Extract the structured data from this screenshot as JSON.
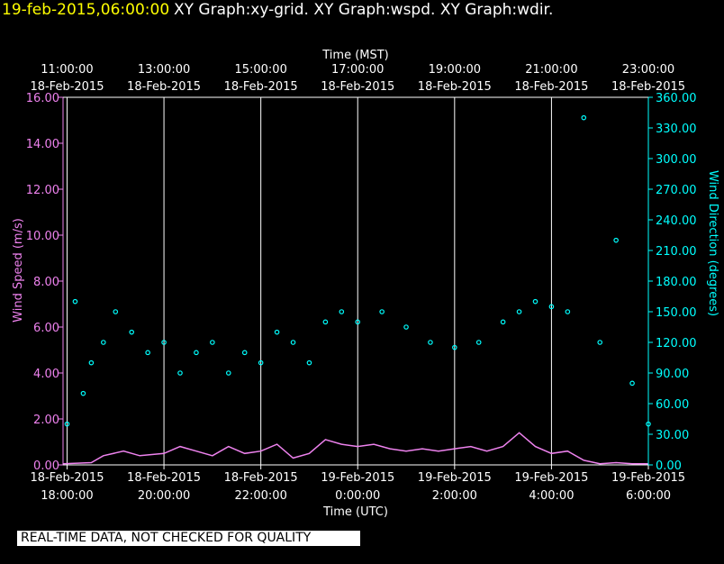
{
  "header": {
    "date_label": "19-feb-2015,06:00:00",
    "graphs_label": "XY Graph:xy-grid.  XY Graph:wspd.  XY Graph:wdir."
  },
  "banner": "REAL-TIME DATA, NOT CHECKED FOR QUALITY",
  "chart_data": {
    "type": "scatter",
    "title": "",
    "top_axis": {
      "label": "Time (MST)",
      "ticks": [
        {
          "time": "11:00:00",
          "date": "18-Feb-2015"
        },
        {
          "time": "13:00:00",
          "date": "18-Feb-2015"
        },
        {
          "time": "15:00:00",
          "date": "18-Feb-2015"
        },
        {
          "time": "17:00:00",
          "date": "18-Feb-2015"
        },
        {
          "time": "19:00:00",
          "date": "18-Feb-2015"
        },
        {
          "time": "21:00:00",
          "date": "18-Feb-2015"
        },
        {
          "time": "23:00:00",
          "date": "18-Feb-2015"
        }
      ]
    },
    "bottom_axis": {
      "label": "Time (UTC)",
      "ticks": [
        {
          "date": "18-Feb-2015",
          "time": "18:00:00"
        },
        {
          "date": "18-Feb-2015",
          "time": "20:00:00"
        },
        {
          "date": "18-Feb-2015",
          "time": "22:00:00"
        },
        {
          "date": "19-Feb-2015",
          "time": "0:00:00"
        },
        {
          "date": "19-Feb-2015",
          "time": "2:00:00"
        },
        {
          "date": "19-Feb-2015",
          "time": "4:00:00"
        },
        {
          "date": "19-Feb-2015",
          "time": "6:00:00"
        }
      ],
      "xlim_utc": [
        "2015-02-18 17:55",
        "2015-02-19 06:00"
      ]
    },
    "left_axis": {
      "label": "Wind Speed (m/s)",
      "ylim": [
        0,
        16
      ],
      "tick_labels": [
        "0.00",
        "2.00",
        "4.00",
        "6.00",
        "8.00",
        "10.00",
        "12.00",
        "14.00",
        "16.00"
      ]
    },
    "right_axis": {
      "label": "Wind Direction (degrees)",
      "ylim": [
        0,
        360
      ],
      "tick_labels": [
        "0.00",
        "30.00",
        "60.00",
        "90.00",
        "120.00",
        "150.00",
        "180.00",
        "210.00",
        "240.00",
        "270.00",
        "300.00",
        "330.00",
        "360.00"
      ]
    },
    "grid": "vertical",
    "colors": {
      "wind_speed": "#ee82ee",
      "wind_direction": "#00ffff",
      "grid": "#ffffff",
      "header_date": "#ffff00"
    },
    "series": [
      {
        "name": "Wind Speed (m/s)",
        "axis": "left",
        "style": "line",
        "points": [
          [
            "2015-02-18 17:55",
            0.05
          ],
          [
            "2015-02-18 18:30",
            0.1
          ],
          [
            "2015-02-18 18:45",
            0.4
          ],
          [
            "2015-02-18 19:10",
            0.6
          ],
          [
            "2015-02-18 19:30",
            0.4
          ],
          [
            "2015-02-18 20:00",
            0.5
          ],
          [
            "2015-02-18 20:20",
            0.8
          ],
          [
            "2015-02-18 20:40",
            0.6
          ],
          [
            "2015-02-18 21:00",
            0.4
          ],
          [
            "2015-02-18 21:20",
            0.8
          ],
          [
            "2015-02-18 21:40",
            0.5
          ],
          [
            "2015-02-18 22:00",
            0.6
          ],
          [
            "2015-02-18 22:20",
            0.9
          ],
          [
            "2015-02-18 22:40",
            0.3
          ],
          [
            "2015-02-18 23:00",
            0.5
          ],
          [
            "2015-02-18 23:20",
            1.1
          ],
          [
            "2015-02-18 23:40",
            0.9
          ],
          [
            "2015-02-19 00:00",
            0.8
          ],
          [
            "2015-02-19 00:20",
            0.9
          ],
          [
            "2015-02-19 00:40",
            0.7
          ],
          [
            "2015-02-19 01:00",
            0.6
          ],
          [
            "2015-02-19 01:20",
            0.7
          ],
          [
            "2015-02-19 01:40",
            0.6
          ],
          [
            "2015-02-19 02:00",
            0.7
          ],
          [
            "2015-02-19 02:20",
            0.8
          ],
          [
            "2015-02-19 02:40",
            0.6
          ],
          [
            "2015-02-19 03:00",
            0.8
          ],
          [
            "2015-02-19 03:20",
            1.4
          ],
          [
            "2015-02-19 03:40",
            0.8
          ],
          [
            "2015-02-19 04:00",
            0.5
          ],
          [
            "2015-02-19 04:20",
            0.6
          ],
          [
            "2015-02-19 04:40",
            0.2
          ],
          [
            "2015-02-19 05:00",
            0.05
          ],
          [
            "2015-02-19 05:20",
            0.1
          ],
          [
            "2015-02-19 05:40",
            0.05
          ],
          [
            "2015-02-19 06:00",
            0.05
          ]
        ]
      },
      {
        "name": "Wind Direction (degrees)",
        "axis": "right",
        "style": "circle-markers",
        "points": [
          [
            "2015-02-18 18:00",
            40
          ],
          [
            "2015-02-18 18:10",
            160
          ],
          [
            "2015-02-18 18:20",
            70
          ],
          [
            "2015-02-18 18:30",
            100
          ],
          [
            "2015-02-18 18:45",
            120
          ],
          [
            "2015-02-18 19:00",
            150
          ],
          [
            "2015-02-18 19:20",
            130
          ],
          [
            "2015-02-18 19:40",
            110
          ],
          [
            "2015-02-18 20:00",
            120
          ],
          [
            "2015-02-18 20:20",
            90
          ],
          [
            "2015-02-18 20:40",
            110
          ],
          [
            "2015-02-18 21:00",
            120
          ],
          [
            "2015-02-18 21:20",
            90
          ],
          [
            "2015-02-18 21:40",
            110
          ],
          [
            "2015-02-18 22:00",
            100
          ],
          [
            "2015-02-18 22:20",
            130
          ],
          [
            "2015-02-18 22:40",
            120
          ],
          [
            "2015-02-18 23:00",
            100
          ],
          [
            "2015-02-18 23:20",
            140
          ],
          [
            "2015-02-18 23:40",
            150
          ],
          [
            "2015-02-19 00:00",
            140
          ],
          [
            "2015-02-19 00:30",
            150
          ],
          [
            "2015-02-19 01:00",
            135
          ],
          [
            "2015-02-19 01:30",
            120
          ],
          [
            "2015-02-19 02:00",
            115
          ],
          [
            "2015-02-19 02:30",
            120
          ],
          [
            "2015-02-19 03:00",
            140
          ],
          [
            "2015-02-19 03:20",
            150
          ],
          [
            "2015-02-19 03:40",
            160
          ],
          [
            "2015-02-19 04:00",
            155
          ],
          [
            "2015-02-19 04:20",
            150
          ],
          [
            "2015-02-19 04:40",
            340
          ],
          [
            "2015-02-19 05:00",
            120
          ],
          [
            "2015-02-19 05:20",
            220
          ],
          [
            "2015-02-19 05:40",
            80
          ],
          [
            "2015-02-19 06:00",
            40
          ]
        ]
      }
    ]
  }
}
